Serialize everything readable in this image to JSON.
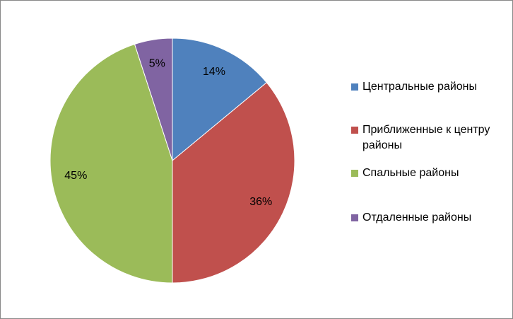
{
  "chart_data": {
    "type": "pie",
    "categories": [
      "Центральные районы",
      "Приближенные к центру районы",
      "Спальные районы",
      "Отдаленные районы"
    ],
    "values": [
      14,
      36,
      45,
      5
    ],
    "value_labels": [
      "14%",
      "36%",
      "45%",
      "5%"
    ],
    "colors": [
      "#4f81bd",
      "#c0504d",
      "#9bbb59",
      "#8064a2"
    ],
    "legend": "right"
  }
}
